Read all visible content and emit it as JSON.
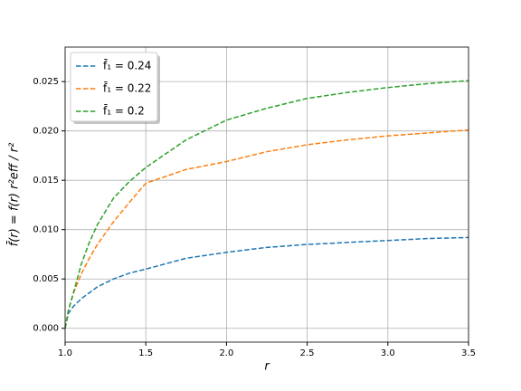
{
  "chart_data": {
    "type": "line",
    "x": [
      1.0,
      1.02,
      1.05,
      1.1,
      1.15,
      1.2,
      1.3,
      1.4,
      1.5,
      1.75,
      2.0,
      2.25,
      2.5,
      2.75,
      3.0,
      3.25,
      3.5
    ],
    "series": [
      {
        "name": "f̄₁ = 0.24",
        "color": "#1f77b4",
        "values": [
          0.0,
          0.0015,
          0.0022,
          0.003,
          0.0036,
          0.0042,
          0.005,
          0.0056,
          0.006,
          0.0071,
          0.0077,
          0.0082,
          0.0085,
          0.0087,
          0.0089,
          0.0091,
          0.0092
        ]
      },
      {
        "name": "f̄₁ = 0.22",
        "color": "#ff7f0e",
        "values": [
          0.0,
          0.0018,
          0.0035,
          0.0055,
          0.0071,
          0.0085,
          0.0108,
          0.0128,
          0.0147,
          0.0161,
          0.0169,
          0.0179,
          0.0186,
          0.0191,
          0.0195,
          0.0198,
          0.0201
        ]
      },
      {
        "name": "f̄₁ = 0.2",
        "color": "#2ca02c",
        "values": [
          0.0,
          0.0018,
          0.0035,
          0.0065,
          0.0087,
          0.0105,
          0.0132,
          0.0149,
          0.0163,
          0.0191,
          0.0211,
          0.0223,
          0.0233,
          0.0239,
          0.0244,
          0.0248,
          0.0251
        ]
      }
    ],
    "xlabel": "r",
    "ylabel": "f̄(r) = f(r) r²eff / r²",
    "xlim": [
      1.0,
      3.5
    ],
    "xticks": [
      {
        "value": 1.0,
        "label": "1.0"
      },
      1.5,
      {
        "value": 2.0,
        "label": "2.0"
      },
      2.5,
      {
        "value": 3.0,
        "label": "3.0"
      },
      3.5
    ],
    "ylim": [
      -0.0014,
      0.0285
    ],
    "yticks": [
      {
        "value": 0,
        "label": "0.000"
      },
      0.005,
      {
        "value": 0.01,
        "label": "0.010"
      },
      0.015,
      {
        "value": 0.02,
        "label": "0.020"
      },
      0.025
    ],
    "grid": true,
    "legend": "upper left",
    "linestyle": "dashed"
  }
}
